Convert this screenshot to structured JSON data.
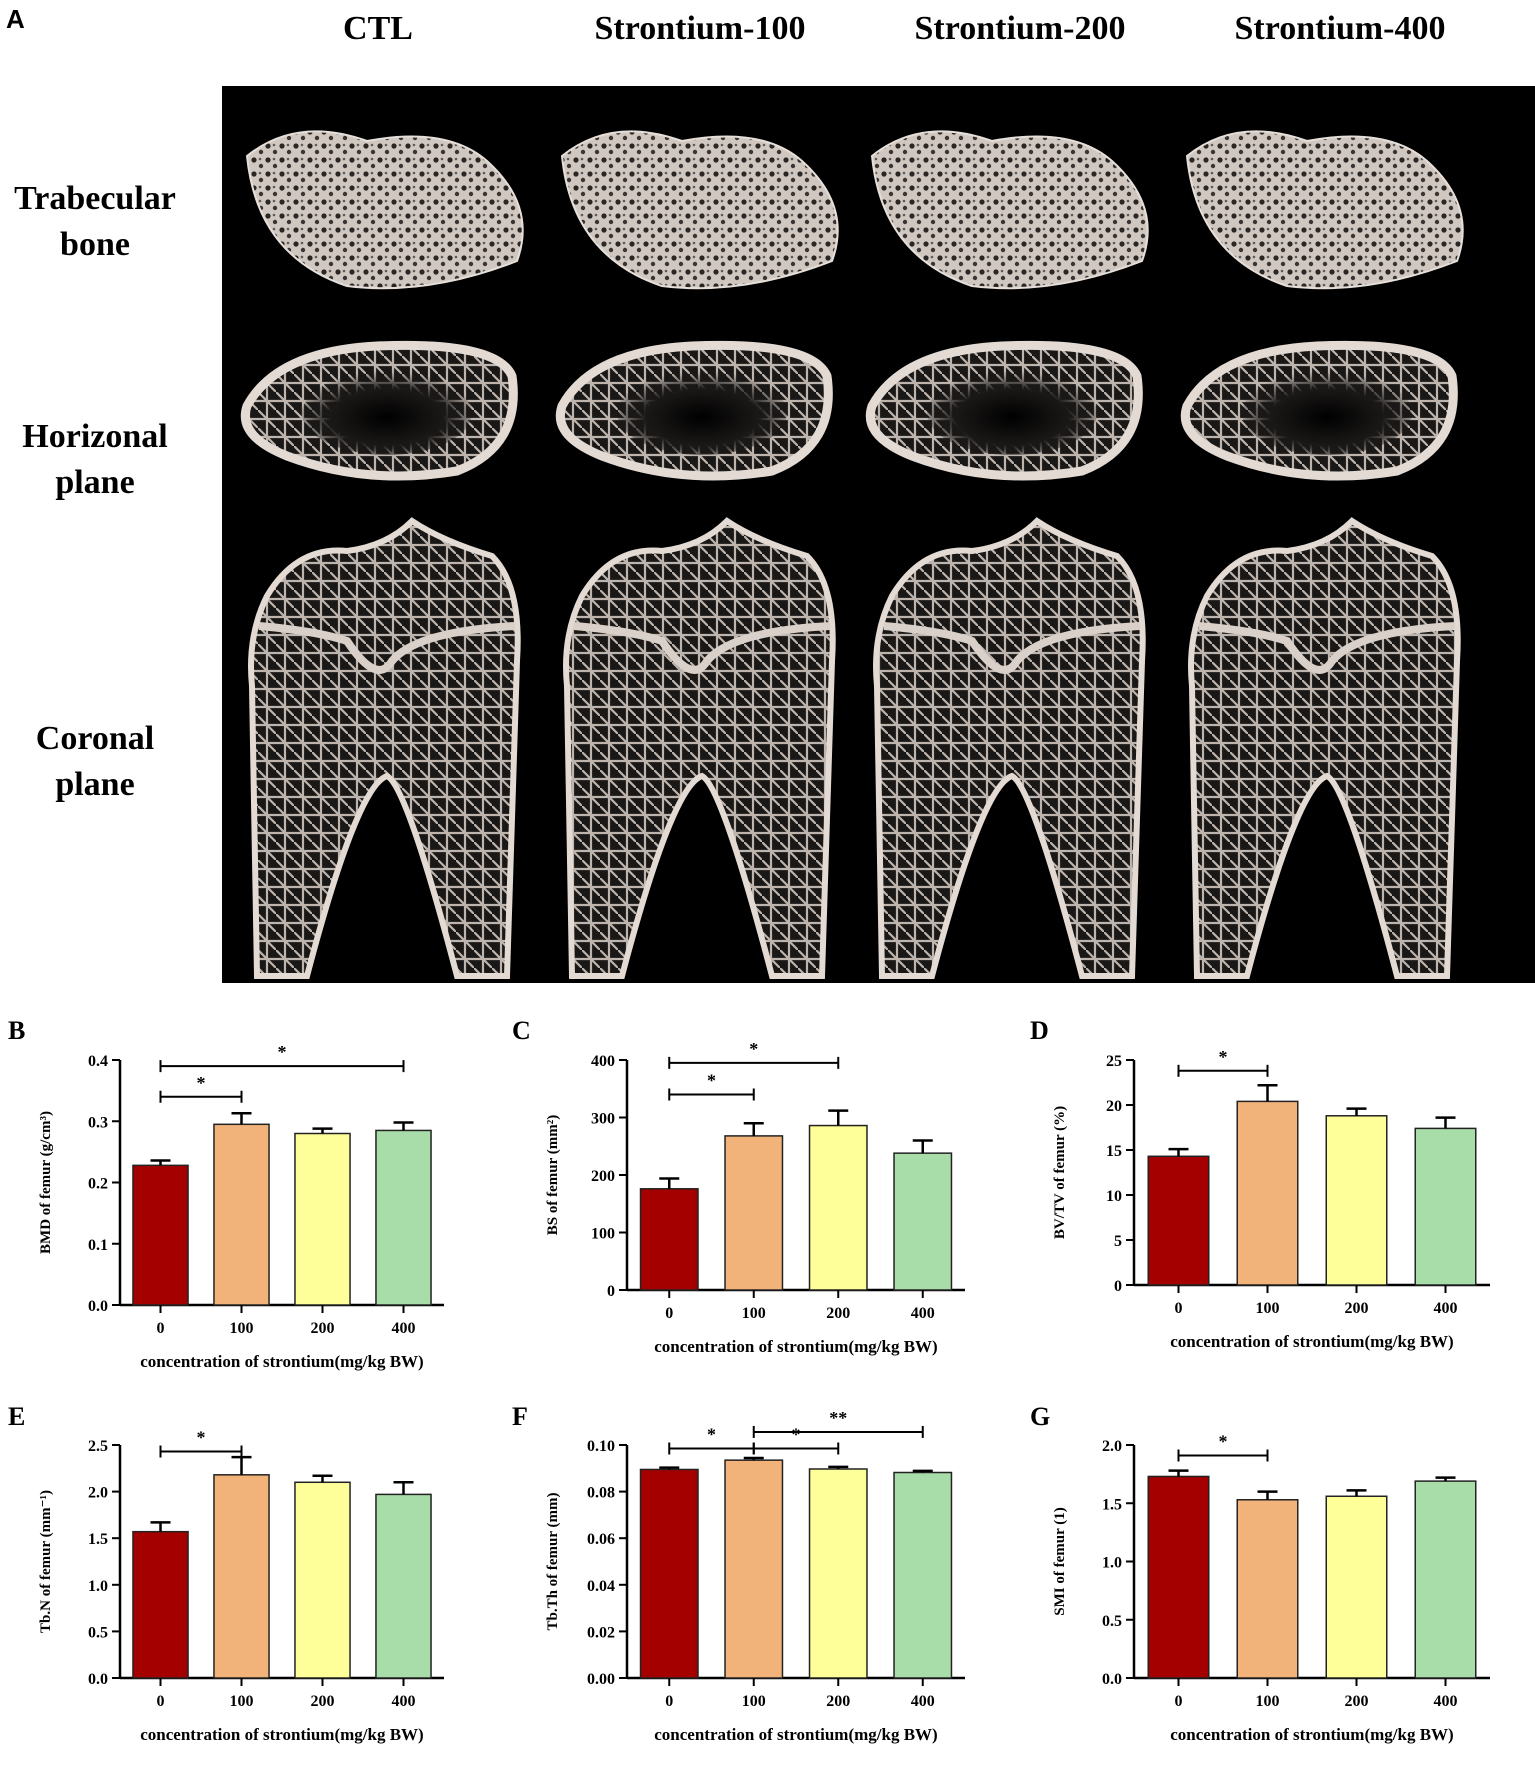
{
  "figure_a": {
    "panel_letter": "A",
    "columns": [
      "CTL",
      "Strontium-100",
      "Strontium-200",
      "Strontium-400"
    ],
    "rows": [
      {
        "line1": "Trabecular",
        "line2": "bone"
      },
      {
        "line1": "Horizonal",
        "line2": "plane"
      },
      {
        "line1": "Coronal",
        "line2": "plane"
      }
    ]
  },
  "colors": {
    "bars": [
      "#a50000",
      "#f2b37a",
      "#ffff99",
      "#a8dca8"
    ],
    "image_bg": "#000000",
    "bone": "#d9d2cc"
  },
  "chart_data": [
    {
      "panel": "B",
      "type": "bar",
      "categories": [
        "0",
        "100",
        "200",
        "400"
      ],
      "values": [
        0.228,
        0.295,
        0.28,
        0.285
      ],
      "errors": [
        0.008,
        0.018,
        0.008,
        0.013
      ],
      "ylabel": "BMD of femur (g/cm³)",
      "xlabel": "concentration of strontium(mg/kg BW)",
      "ylim": [
        0,
        0.4
      ],
      "yticks": [
        "0.0",
        "0.1",
        "0.2",
        "0.3",
        "0.4"
      ],
      "annotations": [
        {
          "from": 0,
          "to": 1,
          "label": "*",
          "y": 0.34
        },
        {
          "from": 0,
          "to": 3,
          "label": "*",
          "y": 0.39
        }
      ]
    },
    {
      "panel": "C",
      "type": "bar",
      "categories": [
        "0",
        "100",
        "200",
        "400"
      ],
      "values": [
        176,
        268,
        286,
        238
      ],
      "errors": [
        18,
        22,
        26,
        22
      ],
      "ylabel": "BS of femur (mm²)",
      "xlabel": "concentration of strontium(mg/kg BW)",
      "ylim": [
        0,
        400
      ],
      "yticks": [
        "0",
        "100",
        "200",
        "300",
        "400"
      ],
      "annotations": [
        {
          "from": 0,
          "to": 1,
          "label": "*",
          "y": 340
        },
        {
          "from": 0,
          "to": 2,
          "label": "*",
          "y": 395
        }
      ]
    },
    {
      "panel": "D",
      "type": "bar",
      "categories": [
        "0",
        "100",
        "200",
        "400"
      ],
      "values": [
        14.3,
        20.4,
        18.8,
        17.4
      ],
      "errors": [
        0.8,
        1.8,
        0.8,
        1.2
      ],
      "ylabel": "BV/TV of femur (%)",
      "xlabel": "concentration of strontium(mg/kg BW)",
      "ylim": [
        0,
        25
      ],
      "yticks": [
        "0",
        "5",
        "10",
        "15",
        "20",
        "25"
      ],
      "annotations": [
        {
          "from": 0,
          "to": 1,
          "label": "*",
          "y": 23.8
        }
      ]
    },
    {
      "panel": "E",
      "type": "bar",
      "categories": [
        "0",
        "100",
        "200",
        "400"
      ],
      "values": [
        1.57,
        2.18,
        2.1,
        1.97
      ],
      "errors": [
        0.1,
        0.19,
        0.07,
        0.13
      ],
      "ylabel": "Tb.N of femur (mm⁻¹)",
      "xlabel": "concentration of strontium(mg/kg BW)",
      "ylim": [
        0,
        2.5
      ],
      "yticks": [
        "0.0",
        "0.5",
        "1.0",
        "1.5",
        "2.0",
        "2.5"
      ],
      "annotations": [
        {
          "from": 0,
          "to": 1,
          "label": "*",
          "y": 2.43
        }
      ]
    },
    {
      "panel": "F",
      "type": "bar",
      "categories": [
        "0",
        "100",
        "200",
        "400"
      ],
      "values": [
        0.0895,
        0.0935,
        0.0897,
        0.0882
      ],
      "errors": [
        0.0008,
        0.0009,
        0.0009,
        0.0007
      ],
      "ylabel": "Tb.Th of femur (mm)",
      "xlabel": "concentration of strontium(mg/kg BW)",
      "ylim": [
        0,
        0.1
      ],
      "yticks": [
        "0.00",
        "0.02",
        "0.04",
        "0.06",
        "0.08",
        "0.10"
      ],
      "annotations": [
        {
          "from": 0,
          "to": 1,
          "label": "*",
          "y": 0.0985
        },
        {
          "from": 1,
          "to": 2,
          "label": "*",
          "y": 0.0985
        },
        {
          "from": 1,
          "to": 3,
          "label": "**",
          "y": 0.1056
        }
      ]
    },
    {
      "panel": "G",
      "type": "bar",
      "categories": [
        "0",
        "100",
        "200",
        "400"
      ],
      "values": [
        1.73,
        1.53,
        1.56,
        1.69
      ],
      "errors": [
        0.05,
        0.07,
        0.05,
        0.03
      ],
      "ylabel": "SMI of femur (1)",
      "xlabel": "concentration of strontium(mg/kg BW)",
      "ylim": [
        0,
        2.0
      ],
      "yticks": [
        "0.0",
        "0.5",
        "1.0",
        "1.5",
        "2.0"
      ],
      "annotations": [
        {
          "from": 0,
          "to": 1,
          "label": "*",
          "y": 1.91
        }
      ]
    }
  ]
}
